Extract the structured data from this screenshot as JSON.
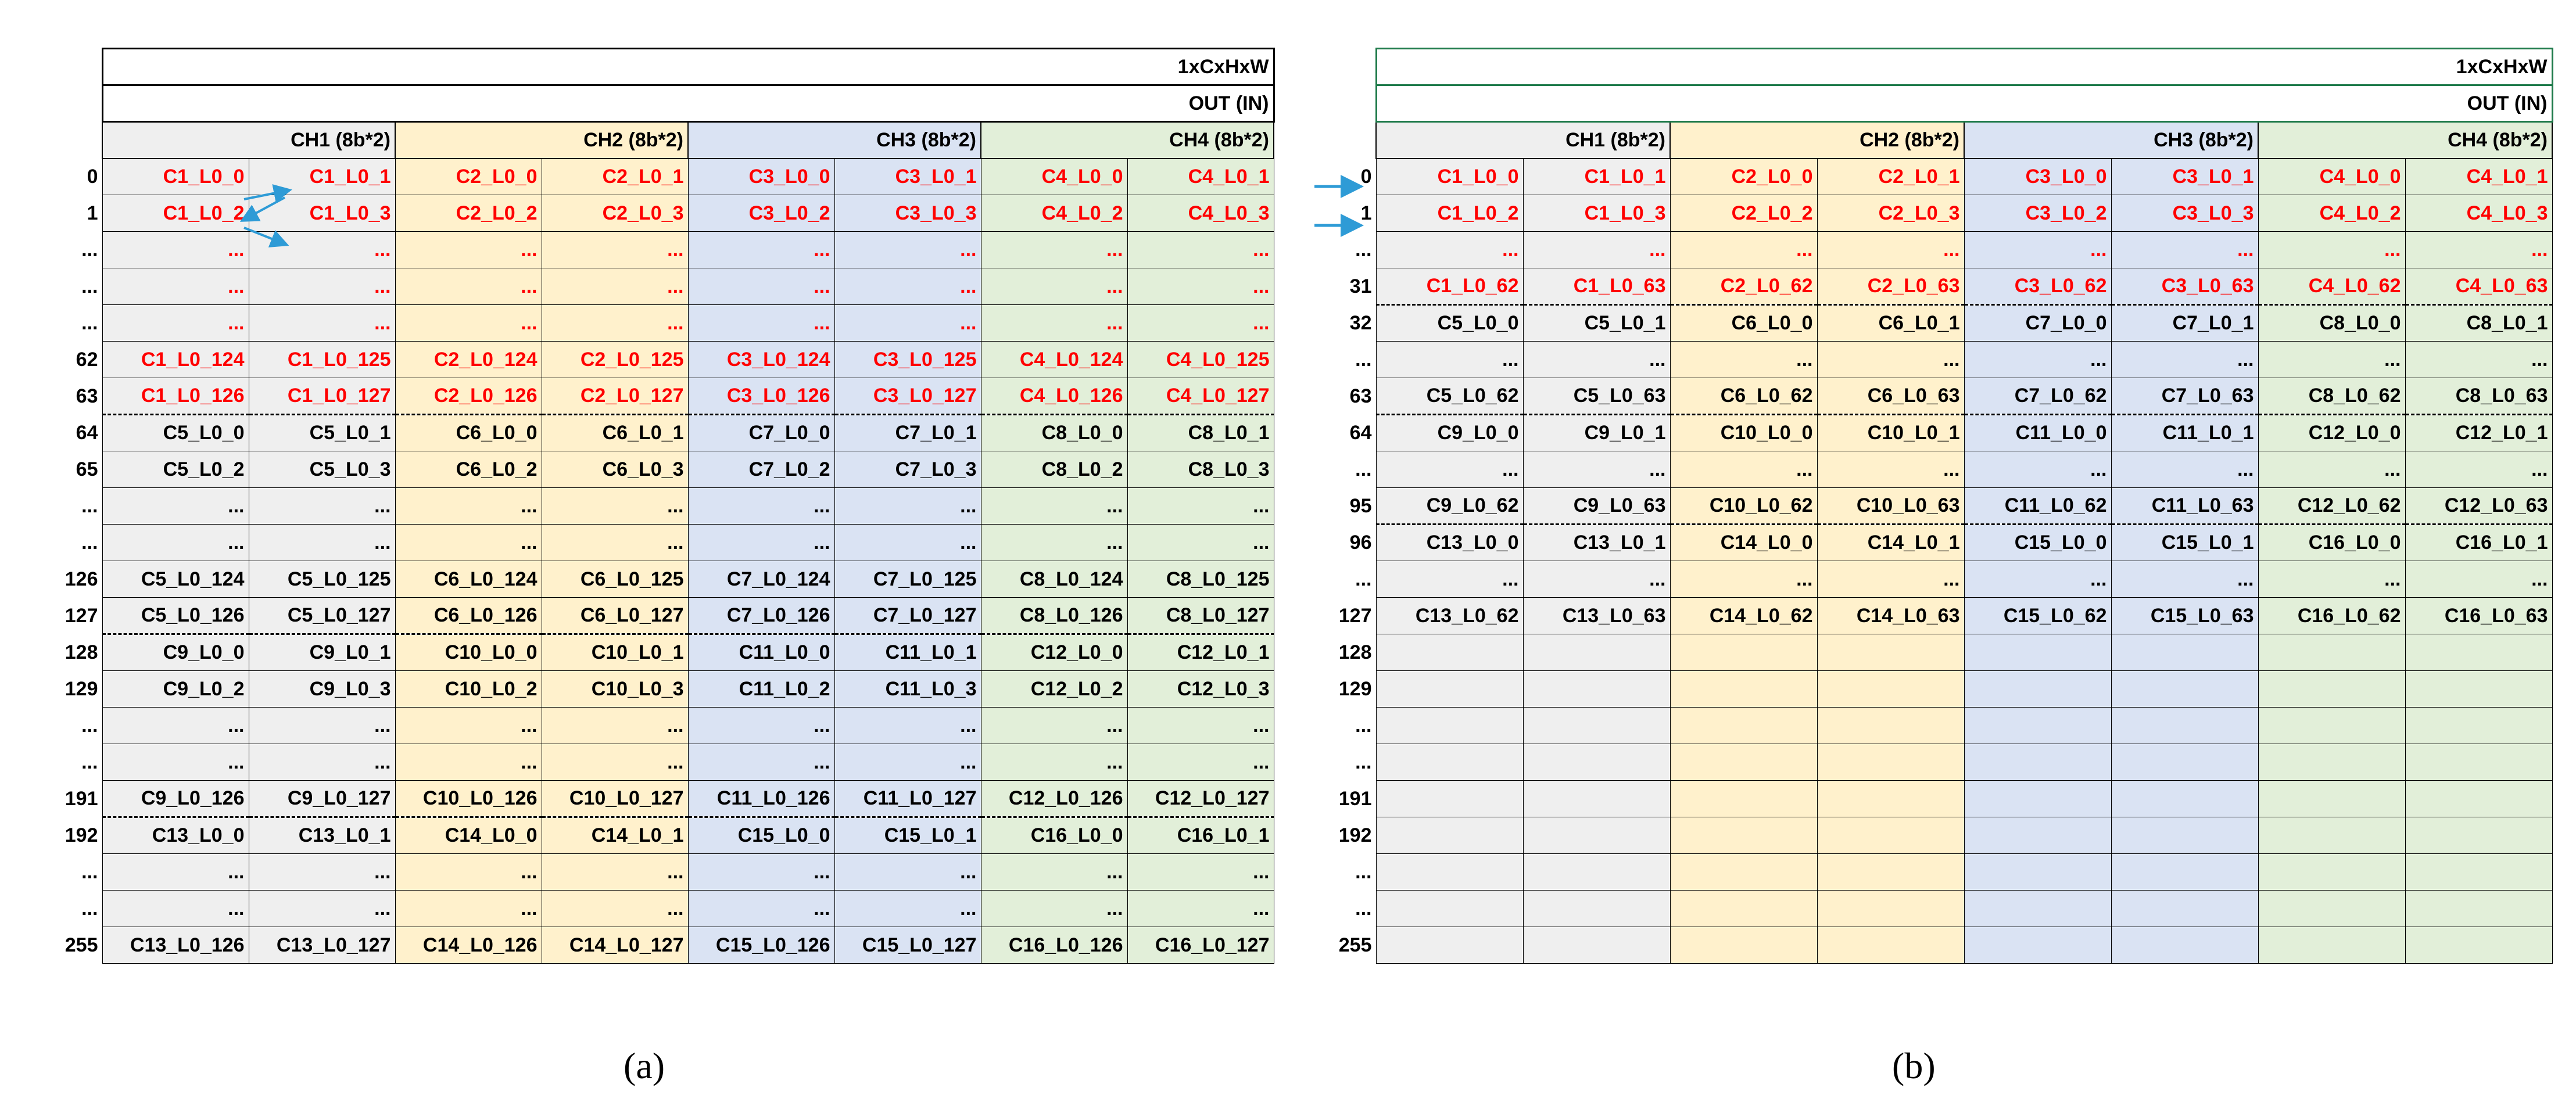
{
  "panels": [
    {
      "id": "a",
      "caption": "(a)",
      "title": "1xCxHxW",
      "subtitle": "OUT (IN)",
      "channels": [
        "CH1 (8b*2)",
        "CH2 (8b*2)",
        "CH3 (8b*2)",
        "CH4 (8b*2)"
      ],
      "rows": [
        {
          "index": "0",
          "red": true,
          "dash": false,
          "cells": [
            "C1_L0_0",
            "C1_L0_1",
            "C2_L0_0",
            "C2_L0_1",
            "C3_L0_0",
            "C3_L0_1",
            "C4_L0_0",
            "C4_L0_1"
          ]
        },
        {
          "index": "1",
          "red": true,
          "dash": false,
          "cells": [
            "C1_L0_2",
            "C1_L0_3",
            "C2_L0_2",
            "C2_L0_3",
            "C3_L0_2",
            "C3_L0_3",
            "C4_L0_2",
            "C4_L0_3"
          ]
        },
        {
          "index": "...",
          "red": true,
          "dash": false,
          "cells": [
            "...",
            "...",
            "...",
            "...",
            "...",
            "...",
            "...",
            "..."
          ]
        },
        {
          "index": "...",
          "red": true,
          "dash": false,
          "cells": [
            "...",
            "...",
            "...",
            "...",
            "...",
            "...",
            "...",
            "..."
          ]
        },
        {
          "index": "...",
          "red": true,
          "dash": false,
          "cells": [
            "...",
            "...",
            "...",
            "...",
            "...",
            "...",
            "...",
            "..."
          ]
        },
        {
          "index": "62",
          "red": true,
          "dash": false,
          "cells": [
            "C1_L0_124",
            "C1_L0_125",
            "C2_L0_124",
            "C2_L0_125",
            "C3_L0_124",
            "C3_L0_125",
            "C4_L0_124",
            "C4_L0_125"
          ]
        },
        {
          "index": "63",
          "red": true,
          "dash": true,
          "cells": [
            "C1_L0_126",
            "C1_L0_127",
            "C2_L0_126",
            "C2_L0_127",
            "C3_L0_126",
            "C3_L0_127",
            "C4_L0_126",
            "C4_L0_127"
          ]
        },
        {
          "index": "64",
          "red": false,
          "dash": false,
          "cells": [
            "C5_L0_0",
            "C5_L0_1",
            "C6_L0_0",
            "C6_L0_1",
            "C7_L0_0",
            "C7_L0_1",
            "C8_L0_0",
            "C8_L0_1"
          ]
        },
        {
          "index": "65",
          "red": false,
          "dash": false,
          "cells": [
            "C5_L0_2",
            "C5_L0_3",
            "C6_L0_2",
            "C6_L0_3",
            "C7_L0_2",
            "C7_L0_3",
            "C8_L0_2",
            "C8_L0_3"
          ]
        },
        {
          "index": "...",
          "red": false,
          "dash": false,
          "cells": [
            "...",
            "...",
            "...",
            "...",
            "...",
            "...",
            "...",
            "..."
          ]
        },
        {
          "index": "...",
          "red": false,
          "dash": false,
          "cells": [
            "...",
            "...",
            "...",
            "...",
            "...",
            "...",
            "...",
            "..."
          ]
        },
        {
          "index": "126",
          "red": false,
          "dash": false,
          "cells": [
            "C5_L0_124",
            "C5_L0_125",
            "C6_L0_124",
            "C6_L0_125",
            "C7_L0_124",
            "C7_L0_125",
            "C8_L0_124",
            "C8_L0_125"
          ]
        },
        {
          "index": "127",
          "red": false,
          "dash": true,
          "cells": [
            "C5_L0_126",
            "C5_L0_127",
            "C6_L0_126",
            "C6_L0_127",
            "C7_L0_126",
            "C7_L0_127",
            "C8_L0_126",
            "C8_L0_127"
          ]
        },
        {
          "index": "128",
          "red": false,
          "dash": false,
          "cells": [
            "C9_L0_0",
            "C9_L0_1",
            "C10_L0_0",
            "C10_L0_1",
            "C11_L0_0",
            "C11_L0_1",
            "C12_L0_0",
            "C12_L0_1"
          ]
        },
        {
          "index": "129",
          "red": false,
          "dash": false,
          "cells": [
            "C9_L0_2",
            "C9_L0_3",
            "C10_L0_2",
            "C10_L0_3",
            "C11_L0_2",
            "C11_L0_3",
            "C12_L0_2",
            "C12_L0_3"
          ]
        },
        {
          "index": "...",
          "red": false,
          "dash": false,
          "cells": [
            "...",
            "...",
            "...",
            "...",
            "...",
            "...",
            "...",
            "..."
          ]
        },
        {
          "index": "...",
          "red": false,
          "dash": false,
          "cells": [
            "...",
            "...",
            "...",
            "...",
            "...",
            "...",
            "...",
            "..."
          ]
        },
        {
          "index": "191",
          "red": false,
          "dash": true,
          "cells": [
            "C9_L0_126",
            "C9_L0_127",
            "C10_L0_126",
            "C10_L0_127",
            "C11_L0_126",
            "C11_L0_127",
            "C12_L0_126",
            "C12_L0_127"
          ]
        },
        {
          "index": "192",
          "red": false,
          "dash": false,
          "cells": [
            "C13_L0_0",
            "C13_L0_1",
            "C14_L0_0",
            "C14_L0_1",
            "C15_L0_0",
            "C15_L0_1",
            "C16_L0_0",
            "C16_L0_1"
          ]
        },
        {
          "index": "...",
          "red": false,
          "dash": false,
          "cells": [
            "...",
            "...",
            "...",
            "...",
            "...",
            "...",
            "...",
            "..."
          ]
        },
        {
          "index": "...",
          "red": false,
          "dash": false,
          "cells": [
            "...",
            "...",
            "...",
            "...",
            "...",
            "...",
            "...",
            "..."
          ]
        },
        {
          "index": "255",
          "red": false,
          "dash": false,
          "cells": [
            "C13_L0_126",
            "C13_L0_127",
            "C14_L0_126",
            "C14_L0_127",
            "C15_L0_126",
            "C15_L0_127",
            "C16_L0_126",
            "C16_L0_127"
          ]
        }
      ]
    },
    {
      "id": "b",
      "caption": "(b)",
      "title": "1xCxHxW",
      "subtitle": "OUT (IN)",
      "channels": [
        "CH1 (8b*2)",
        "CH2 (8b*2)",
        "CH3 (8b*2)",
        "CH4 (8b*2)"
      ],
      "rows": [
        {
          "index": "0",
          "red": true,
          "dash": false,
          "cells": [
            "C1_L0_0",
            "C1_L0_1",
            "C2_L0_0",
            "C2_L0_1",
            "C3_L0_0",
            "C3_L0_1",
            "C4_L0_0",
            "C4_L0_1"
          ]
        },
        {
          "index": "1",
          "red": true,
          "dash": false,
          "cells": [
            "C1_L0_2",
            "C1_L0_3",
            "C2_L0_2",
            "C2_L0_3",
            "C3_L0_2",
            "C3_L0_3",
            "C4_L0_2",
            "C4_L0_3"
          ]
        },
        {
          "index": "...",
          "red": true,
          "dash": false,
          "cells": [
            "...",
            "...",
            "...",
            "...",
            "...",
            "...",
            "...",
            "..."
          ]
        },
        {
          "index": "31",
          "red": true,
          "dash": true,
          "cells": [
            "C1_L0_62",
            "C1_L0_63",
            "C2_L0_62",
            "C2_L0_63",
            "C3_L0_62",
            "C3_L0_63",
            "C4_L0_62",
            "C4_L0_63"
          ]
        },
        {
          "index": "32",
          "red": false,
          "dash": false,
          "cells": [
            "C5_L0_0",
            "C5_L0_1",
            "C6_L0_0",
            "C6_L0_1",
            "C7_L0_0",
            "C7_L0_1",
            "C8_L0_0",
            "C8_L0_1"
          ]
        },
        {
          "index": "...",
          "red": false,
          "dash": false,
          "cells": [
            "...",
            "...",
            "...",
            "...",
            "...",
            "...",
            "...",
            "..."
          ]
        },
        {
          "index": "63",
          "red": false,
          "dash": true,
          "cells": [
            "C5_L0_62",
            "C5_L0_63",
            "C6_L0_62",
            "C6_L0_63",
            "C7_L0_62",
            "C7_L0_63",
            "C8_L0_62",
            "C8_L0_63"
          ]
        },
        {
          "index": "64",
          "red": false,
          "dash": false,
          "cells": [
            "C9_L0_0",
            "C9_L0_1",
            "C10_L0_0",
            "C10_L0_1",
            "C11_L0_0",
            "C11_L0_1",
            "C12_L0_0",
            "C12_L0_1"
          ]
        },
        {
          "index": "...",
          "red": false,
          "dash": false,
          "cells": [
            "...",
            "...",
            "...",
            "...",
            "...",
            "...",
            "...",
            "..."
          ]
        },
        {
          "index": "95",
          "red": false,
          "dash": true,
          "cells": [
            "C9_L0_62",
            "C9_L0_63",
            "C10_L0_62",
            "C10_L0_63",
            "C11_L0_62",
            "C11_L0_63",
            "C12_L0_62",
            "C12_L0_63"
          ]
        },
        {
          "index": "96",
          "red": false,
          "dash": false,
          "cells": [
            "C13_L0_0",
            "C13_L0_1",
            "C14_L0_0",
            "C14_L0_1",
            "C15_L0_0",
            "C15_L0_1",
            "C16_L0_0",
            "C16_L0_1"
          ]
        },
        {
          "index": "...",
          "red": false,
          "dash": false,
          "cells": [
            "...",
            "...",
            "...",
            "...",
            "...",
            "...",
            "...",
            "..."
          ]
        },
        {
          "index": "127",
          "red": false,
          "dash": false,
          "cells": [
            "C13_L0_62",
            "C13_L0_63",
            "C14_L0_62",
            "C14_L0_63",
            "C15_L0_62",
            "C15_L0_63",
            "C16_L0_62",
            "C16_L0_63"
          ]
        },
        {
          "index": "128",
          "red": false,
          "dash": false,
          "cells": [
            "",
            "",
            "",
            "",
            "",
            "",
            "",
            ""
          ]
        },
        {
          "index": "129",
          "red": false,
          "dash": false,
          "cells": [
            "",
            "",
            "",
            "",
            "",
            "",
            "",
            ""
          ]
        },
        {
          "index": "...",
          "red": false,
          "dash": false,
          "cells": [
            "",
            "",
            "",
            "",
            "",
            "",
            "",
            ""
          ]
        },
        {
          "index": "...",
          "red": false,
          "dash": false,
          "cells": [
            "",
            "",
            "",
            "",
            "",
            "",
            "",
            ""
          ]
        },
        {
          "index": "191",
          "red": false,
          "dash": false,
          "cells": [
            "",
            "",
            "",
            "",
            "",
            "",
            "",
            ""
          ]
        },
        {
          "index": "192",
          "red": false,
          "dash": false,
          "cells": [
            "",
            "",
            "",
            "",
            "",
            "",
            "",
            ""
          ]
        },
        {
          "index": "...",
          "red": false,
          "dash": false,
          "cells": [
            "",
            "",
            "",
            "",
            "",
            "",
            "",
            ""
          ]
        },
        {
          "index": "...",
          "red": false,
          "dash": false,
          "cells": [
            "",
            "",
            "",
            "",
            "",
            "",
            "",
            ""
          ]
        },
        {
          "index": "255",
          "red": false,
          "dash": false,
          "cells": [
            "",
            "",
            "",
            "",
            "",
            "",
            "",
            ""
          ]
        }
      ]
    }
  ],
  "colors": {
    "ch1_fill": "#efefef",
    "ch2_fill": "#fff1cc",
    "ch3_fill": "#dae3f3",
    "ch4_fill": "#e2efd9",
    "highlight_text": "#ff0000",
    "arrow": "#2e9bd6",
    "panel_b_header_border": "#1e7a4a"
  }
}
